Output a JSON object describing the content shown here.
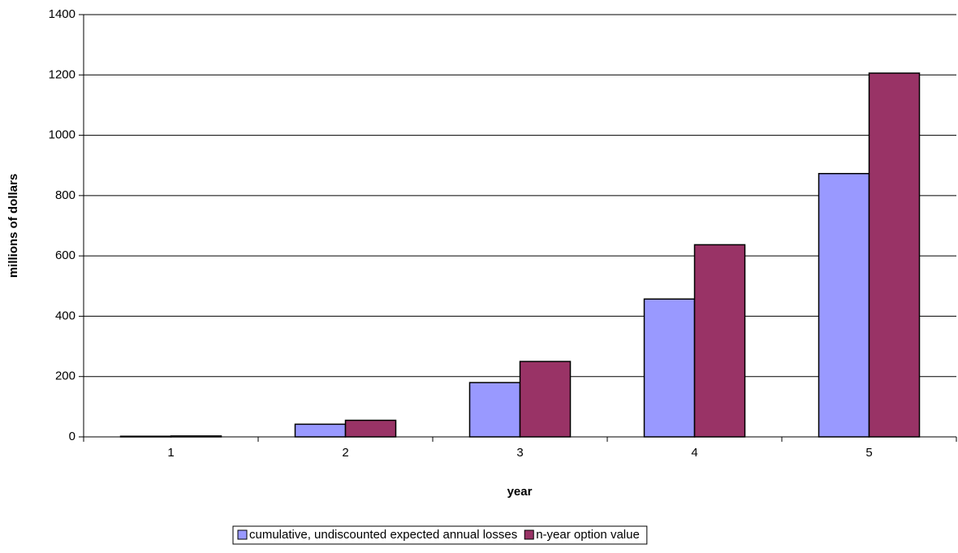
{
  "chart_data": {
    "type": "bar",
    "x_label": "year",
    "y_label": "millions of dollars",
    "categories": [
      "1",
      "2",
      "3",
      "4",
      "5"
    ],
    "series": [
      {
        "name": "cumulative, undiscounted expected annual losses",
        "color": "#9999ff",
        "values": [
          2,
          42,
          180,
          457,
          873
        ]
      },
      {
        "name": "n-year option value",
        "color": "#993366",
        "values": [
          3,
          55,
          250,
          637,
          1206
        ]
      }
    ],
    "ylim": [
      0,
      1400
    ],
    "yticks": [
      0,
      200,
      400,
      600,
      800,
      1000,
      1200,
      1400
    ],
    "grid": true
  }
}
